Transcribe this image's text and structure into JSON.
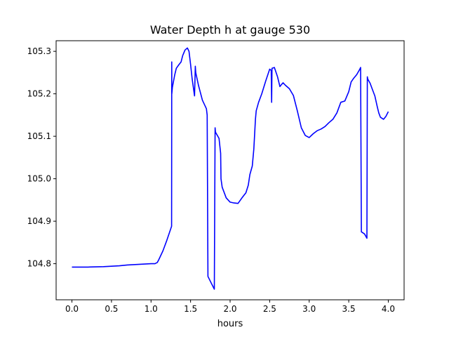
{
  "chart_data": {
    "type": "line",
    "title": "Water Depth h at gauge 530",
    "xlabel": "hours",
    "ylabel": "",
    "xlim": [
      -0.2,
      4.2
    ],
    "ylim": [
      104.715,
      105.325
    ],
    "xticks": [
      0.0,
      0.5,
      1.0,
      1.5,
      2.0,
      2.5,
      3.0,
      3.5,
      4.0
    ],
    "xtick_labels": [
      "0.0",
      "0.5",
      "1.0",
      "1.5",
      "2.0",
      "2.5",
      "3.0",
      "3.5",
      "4.0"
    ],
    "yticks": [
      104.8,
      104.9,
      105.0,
      105.1,
      105.2,
      105.3
    ],
    "ytick_labels": [
      "104.8",
      "104.9",
      "105.0",
      "105.1",
      "105.2",
      "105.3"
    ],
    "grid": false,
    "series": [
      {
        "color": "#0000ff",
        "x": [
          0.0,
          0.2,
          0.4,
          0.6,
          0.7,
          0.8,
          0.9,
          1.0,
          1.05,
          1.08,
          1.1,
          1.15,
          1.2,
          1.26,
          1.262,
          1.263,
          1.27,
          1.3,
          1.32,
          1.35,
          1.38,
          1.4,
          1.43,
          1.46,
          1.48,
          1.5,
          1.52,
          1.55,
          1.56,
          1.565,
          1.6,
          1.65,
          1.7,
          1.71,
          1.72,
          1.76,
          1.8,
          1.81,
          1.815,
          1.83,
          1.86,
          1.88,
          1.885,
          1.9,
          1.95,
          2.0,
          2.05,
          2.1,
          2.15,
          2.2,
          2.23,
          2.25,
          2.28,
          2.3,
          2.32,
          2.33,
          2.36,
          2.4,
          2.45,
          2.5,
          2.52,
          2.525,
          2.53,
          2.56,
          2.6,
          2.63,
          2.65,
          2.67,
          2.7,
          2.75,
          2.8,
          2.85,
          2.9,
          2.95,
          3.0,
          3.05,
          3.1,
          3.15,
          3.2,
          3.25,
          3.3,
          3.35,
          3.4,
          3.45,
          3.5,
          3.53,
          3.56,
          3.6,
          3.64,
          3.65,
          3.66,
          3.7,
          3.73,
          3.735,
          3.74,
          3.77,
          3.8,
          3.83,
          3.86,
          3.88,
          3.9,
          3.94,
          3.97,
          4.0
        ],
        "y": [
          104.792,
          104.792,
          104.793,
          104.795,
          104.797,
          104.798,
          104.799,
          104.8,
          104.8,
          104.803,
          104.81,
          104.83,
          104.855,
          104.888,
          105.275,
          105.2,
          105.215,
          105.245,
          105.26,
          105.268,
          105.275,
          105.29,
          105.303,
          105.308,
          105.3,
          105.27,
          105.235,
          105.195,
          105.265,
          105.25,
          105.22,
          105.185,
          105.165,
          105.15,
          104.77,
          104.755,
          104.74,
          105.12,
          105.11,
          105.105,
          105.095,
          105.06,
          105.0,
          104.98,
          104.955,
          104.945,
          104.943,
          104.942,
          104.955,
          104.967,
          104.985,
          105.01,
          105.03,
          105.07,
          105.14,
          105.16,
          105.18,
          105.2,
          105.23,
          105.258,
          105.255,
          105.18,
          105.26,
          105.262,
          105.24,
          105.217,
          105.222,
          105.226,
          105.22,
          105.212,
          105.196,
          105.16,
          105.12,
          105.102,
          105.097,
          105.106,
          105.113,
          105.117,
          105.123,
          105.132,
          105.14,
          105.155,
          105.18,
          105.183,
          105.205,
          105.228,
          105.236,
          105.245,
          105.258,
          105.262,
          104.875,
          104.87,
          104.86,
          105.24,
          105.235,
          105.225,
          105.21,
          105.195,
          105.17,
          105.155,
          105.145,
          105.14,
          105.147,
          105.158
        ]
      }
    ]
  }
}
